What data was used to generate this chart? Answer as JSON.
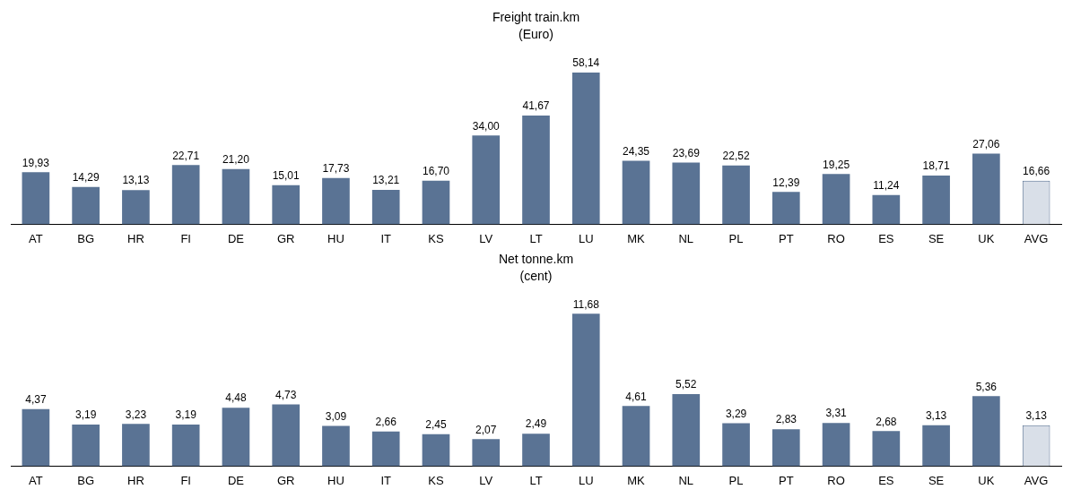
{
  "chart_data": [
    {
      "type": "bar",
      "title": "Freight train.km",
      "subtitle": "(Euro)",
      "categories": [
        "AT",
        "BG",
        "HR",
        "FI",
        "DE",
        "GR",
        "HU",
        "IT",
        "KS",
        "LV",
        "LT",
        "LU",
        "MK",
        "NL",
        "PL",
        "PT",
        "RO",
        "ES",
        "SE",
        "UK",
        "AVG"
      ],
      "values": [
        19.93,
        14.29,
        13.13,
        22.71,
        21.2,
        15.01,
        17.73,
        13.21,
        16.7,
        34.0,
        41.67,
        58.14,
        24.35,
        23.69,
        22.52,
        12.39,
        19.25,
        11.24,
        18.71,
        27.06,
        16.66
      ],
      "value_labels": [
        "19,93",
        "14,29",
        "13,13",
        "22,71",
        "21,20",
        "15,01",
        "17,73",
        "13,21",
        "16,70",
        "34,00",
        "41,67",
        "58,14",
        "24,35",
        "23,69",
        "22,52",
        "12,39",
        "19,25",
        "11,24",
        "18,71",
        "27,06",
        "16,66"
      ],
      "colors": [
        "#5a7394",
        "#5a7394",
        "#5a7394",
        "#5a7394",
        "#5a7394",
        "#5a7394",
        "#5a7394",
        "#5a7394",
        "#5a7394",
        "#5a7394",
        "#5a7394",
        "#5a7394",
        "#5a7394",
        "#5a7394",
        "#5a7394",
        "#5a7394",
        "#5a7394",
        "#5a7394",
        "#5a7394",
        "#5a7394",
        "#d9dfe8"
      ],
      "grid": false,
      "legend": false,
      "tick_labels": "x"
    },
    {
      "type": "bar",
      "title": "Net tonne.km",
      "subtitle": "(cent)",
      "categories": [
        "AT",
        "BG",
        "HR",
        "FI",
        "DE",
        "GR",
        "HU",
        "IT",
        "KS",
        "LV",
        "LT",
        "LU",
        "MK",
        "NL",
        "PL",
        "PT",
        "RO",
        "ES",
        "SE",
        "UK",
        "AVG"
      ],
      "values": [
        4.37,
        3.19,
        3.23,
        3.19,
        4.48,
        4.73,
        3.09,
        2.66,
        2.45,
        2.07,
        2.49,
        11.68,
        4.61,
        5.52,
        3.29,
        2.83,
        3.31,
        2.68,
        3.13,
        5.36,
        3.13
      ],
      "value_labels": [
        "4,37",
        "3,19",
        "3,23",
        "3,19",
        "4,48",
        "4,73",
        "3,09",
        "2,66",
        "2,45",
        "2,07",
        "2,49",
        "11,68",
        "4,61",
        "5,52",
        "3,29",
        "2,83",
        "3,31",
        "2,68",
        "3,13",
        "5,36",
        "3,13"
      ],
      "colors": [
        "#5a7394",
        "#5a7394",
        "#5a7394",
        "#5a7394",
        "#5a7394",
        "#5a7394",
        "#5a7394",
        "#5a7394",
        "#5a7394",
        "#5a7394",
        "#5a7394",
        "#5a7394",
        "#5a7394",
        "#5a7394",
        "#5a7394",
        "#5a7394",
        "#5a7394",
        "#5a7394",
        "#5a7394",
        "#5a7394",
        "#d9dfe8"
      ],
      "grid": false,
      "legend": false,
      "tick_labels": "x"
    }
  ]
}
